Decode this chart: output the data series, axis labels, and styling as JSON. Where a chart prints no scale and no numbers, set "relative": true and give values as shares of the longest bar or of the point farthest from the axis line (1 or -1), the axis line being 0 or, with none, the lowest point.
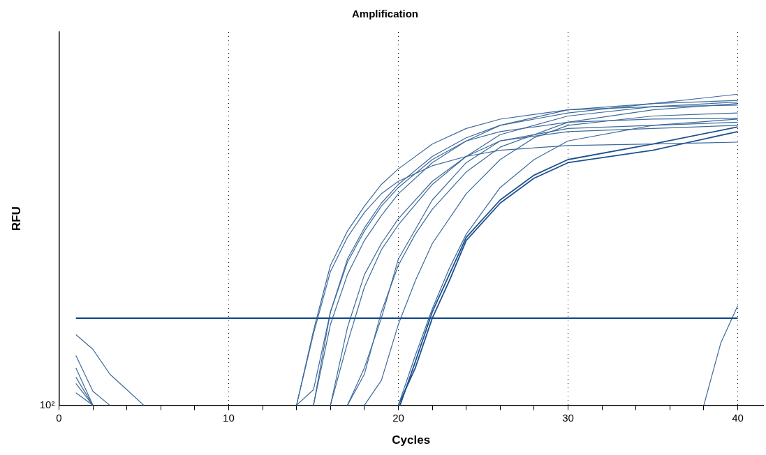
{
  "chart_data": {
    "type": "line",
    "title": "Amplification",
    "xlabel": "Cycles",
    "ylabel": "RFU",
    "relative": true,
    "legend": false,
    "grid": "x",
    "marker": "none",
    "line_style": "solid",
    "annotations": [
      "10²"
    ],
    "xlim": [
      0,
      41.5
    ],
    "xticks": [
      0,
      {
        "value": 2,
        "label": null
      },
      {
        "value": 4,
        "label": null
      },
      {
        "value": 6,
        "label": null
      },
      {
        "value": 8,
        "label": null
      },
      10,
      {
        "value": 12,
        "label": null
      },
      {
        "value": 14,
        "label": null
      },
      {
        "value": 16,
        "label": null
      },
      {
        "value": 18,
        "label": null
      },
      20,
      {
        "value": 22,
        "label": null
      },
      {
        "value": 24,
        "label": null
      },
      {
        "value": 26,
        "label": null
      },
      {
        "value": 28,
        "label": null
      },
      30,
      {
        "value": 32,
        "label": null
      },
      {
        "value": 34,
        "label": null
      },
      {
        "value": 36,
        "label": null
      },
      {
        "value": 38,
        "label": null
      },
      40
    ],
    "ref_lines": [
      {
        "axis": "y",
        "value": 0.28,
        "color": "#1f5190"
      }
    ],
    "series": [
      {
        "color": "#3d6a9b",
        "x": [
          14,
          15,
          16,
          17,
          18,
          19,
          20,
          22,
          24,
          26,
          30,
          35,
          40
        ],
        "values": [
          0,
          0.24,
          0.45,
          0.56,
          0.64,
          0.71,
          0.76,
          0.84,
          0.89,
          0.92,
          0.95,
          0.96,
          0.965
        ]
      },
      {
        "color": "#3d6a9b",
        "x": [
          14,
          15,
          16,
          17,
          18,
          19,
          20,
          22,
          24,
          26,
          30,
          35,
          40
        ],
        "values": [
          0,
          0.23,
          0.43,
          0.54,
          0.62,
          0.68,
          0.72,
          0.77,
          0.8,
          0.82,
          0.835,
          0.84,
          0.846
        ]
      },
      {
        "color": "#3d6a9b",
        "x": [
          14,
          15,
          16,
          17,
          18,
          19,
          20,
          22,
          24,
          26,
          30,
          35,
          40
        ],
        "values": [
          0,
          0.05,
          0.3,
          0.47,
          0.57,
          0.65,
          0.71,
          0.8,
          0.86,
          0.9,
          0.95,
          0.97,
          0.98
        ]
      },
      {
        "color": "#3d6a9b",
        "x": [
          15,
          16,
          17,
          18,
          19,
          20,
          22,
          24,
          26,
          30,
          35,
          40
        ],
        "values": [
          0,
          0.3,
          0.46,
          0.56,
          0.64,
          0.7,
          0.79,
          0.85,
          0.88,
          0.91,
          0.92,
          0.923
        ]
      },
      {
        "color": "#3d6a9b",
        "x": [
          15,
          16,
          17,
          18,
          19,
          20,
          22,
          24,
          26,
          30,
          35,
          40
        ],
        "values": [
          0,
          0.26,
          0.42,
          0.53,
          0.61,
          0.68,
          0.78,
          0.85,
          0.9,
          0.94,
          0.97,
          1
        ]
      },
      {
        "color": "#3d6a9b",
        "x": [
          16,
          17,
          18,
          19,
          20,
          22,
          24,
          26,
          30,
          35,
          40
        ],
        "values": [
          0,
          0.25,
          0.42,
          0.52,
          0.6,
          0.72,
          0.8,
          0.85,
          0.88,
          0.89,
          0.9
        ]
      },
      {
        "color": "#3d6a9b",
        "x": [
          16,
          17,
          18,
          19,
          20,
          22,
          24,
          26,
          30,
          35,
          40
        ],
        "values": [
          0,
          0.2,
          0.38,
          0.5,
          0.58,
          0.71,
          0.8,
          0.87,
          0.93,
          0.96,
          0.975
        ]
      },
      {
        "color": "#3d6a9b",
        "x": [
          17,
          18,
          19,
          20,
          21,
          22,
          24,
          26,
          30,
          35,
          40
        ],
        "values": [
          0,
          0.1,
          0.3,
          0.45,
          0.55,
          0.63,
          0.75,
          0.83,
          0.91,
          0.95,
          0.97
        ]
      },
      {
        "color": "#3d6a9b",
        "x": [
          17,
          18,
          19,
          20,
          22,
          24,
          26,
          30,
          35,
          40
        ],
        "values": [
          0,
          0.12,
          0.28,
          0.47,
          0.66,
          0.78,
          0.85,
          0.89,
          0.9,
          0.91
        ]
      },
      {
        "color": "#3d6a9b",
        "x": [
          18,
          19,
          20,
          21,
          22,
          24,
          26,
          28,
          30,
          35,
          40
        ],
        "values": [
          0,
          0.08,
          0.26,
          0.4,
          0.52,
          0.68,
          0.79,
          0.86,
          0.9,
          0.93,
          0.94
        ]
      },
      {
        "color": "#3d6a9b",
        "x": [
          20,
          21,
          22,
          23,
          24,
          26,
          28,
          30,
          35,
          40
        ],
        "values": [
          0,
          0.16,
          0.31,
          0.44,
          0.55,
          0.7,
          0.79,
          0.85,
          0.9,
          0.92
        ]
      },
      {
        "color": "#1f5190",
        "x": [
          20,
          21,
          22,
          23,
          24,
          26,
          28,
          30,
          35,
          40
        ],
        "values": [
          0,
          0.12,
          0.28,
          0.4,
          0.53,
          0.65,
          0.73,
          0.78,
          0.82,
          0.88
        ]
      },
      {
        "color": "#1f5190",
        "x": [
          20.1,
          21,
          22,
          23,
          24,
          26,
          28,
          30,
          35,
          40
        ],
        "values": [
          0,
          0.14,
          0.3,
          0.42,
          0.54,
          0.66,
          0.74,
          0.79,
          0.84,
          0.895
        ]
      },
      {
        "color": "#3d6a9b",
        "x": [
          38,
          39,
          40
        ],
        "values": [
          0,
          0.2,
          0.32
        ]
      },
      {
        "color": "#3d6a9b",
        "x": [
          1,
          2,
          3,
          4,
          5
        ],
        "values": [
          0.227,
          0.18,
          0.1,
          0.05,
          0
        ]
      },
      {
        "color": "#3d6a9b",
        "x": [
          1,
          2,
          3
        ],
        "values": [
          0.16,
          0.045,
          0
        ]
      },
      {
        "color": "#3d6a9b",
        "x": [
          1,
          2
        ],
        "values": [
          0.12,
          0
        ]
      },
      {
        "color": "#3d6a9b",
        "x": [
          1,
          2
        ],
        "values": [
          0.09,
          0
        ]
      },
      {
        "color": "#3d6a9b",
        "x": [
          1,
          2
        ],
        "values": [
          0.07,
          0
        ]
      },
      {
        "color": "#3d6a9b",
        "x": [
          1,
          2
        ],
        "values": [
          0.04,
          0
        ]
      }
    ]
  }
}
